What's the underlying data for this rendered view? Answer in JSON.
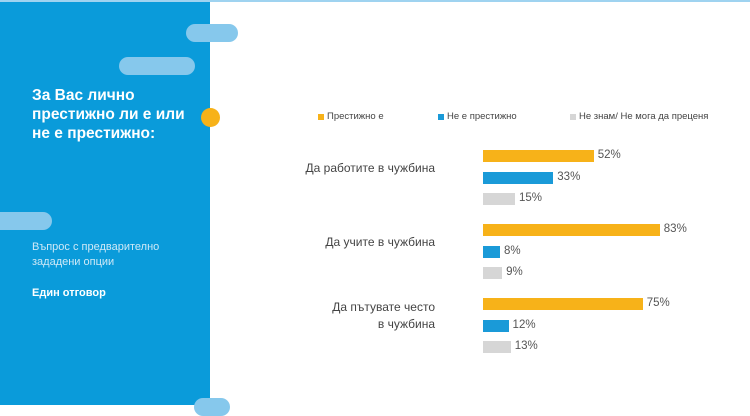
{
  "panel": {
    "question": "За Вас лично престижно ли е или не е престижно:",
    "note": "Въпрос с предварително зададени опции",
    "answer_type": "Един отговор"
  },
  "colors": {
    "panel": "#0a9bda",
    "accent": "#f7b219"
  },
  "chart_data": {
    "type": "bar",
    "orientation": "horizontal",
    "categories": [
      "Да работите в чужбина",
      "Да учите в чужбина",
      "Да пътувате често в чужбина"
    ],
    "series": [
      {
        "name": "Престижно е",
        "color": "#f7b219",
        "values": [
          52,
          83,
          75
        ],
        "labels": [
          "52%",
          "83%",
          "75%"
        ]
      },
      {
        "name": "Не е престижно",
        "color": "#1a9ad8",
        "values": [
          33,
          8,
          12
        ],
        "labels": [
          "33%",
          "8%",
          "12%"
        ]
      },
      {
        "name": "Не знам/ Не мога да преценя",
        "color": "#d6d6d6",
        "values": [
          15,
          9,
          13
        ],
        "labels": [
          "15%",
          "9%",
          "13%"
        ]
      }
    ],
    "unit": "%",
    "legend": "top",
    "grid": false
  }
}
